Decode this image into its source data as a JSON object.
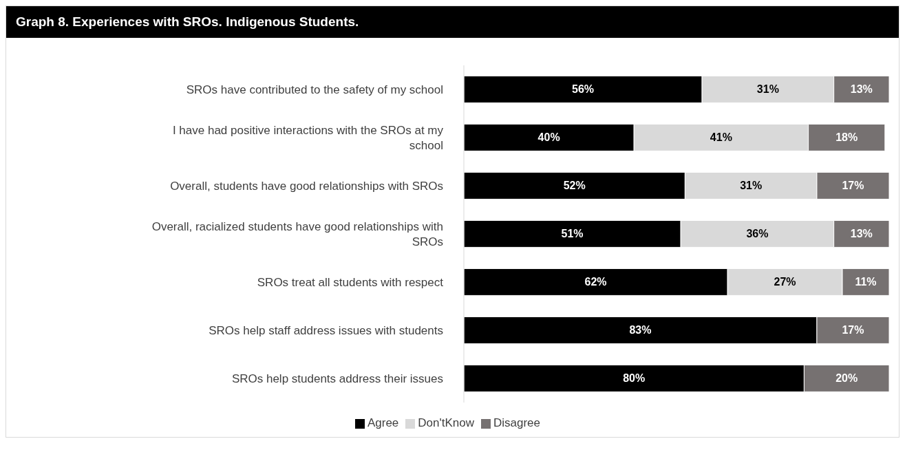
{
  "chart_data": {
    "type": "bar",
    "orientation": "horizontal",
    "stacked": true,
    "title": "Graph 8. Experiences with SROs. Indigenous Students.",
    "legend": "bottom",
    "grid": false,
    "categories": [
      "SROs have contributed to the safety of my school",
      "I have had positive interactions with the SROs at my school",
      "Overall, students have good relationships with SROs",
      "Overall, racialized students have good relationships with SROs",
      "SROs treat all students with respect",
      "SROs help staff address issues with students",
      "SROs help students address their issues"
    ],
    "series": [
      {
        "name": "Agree",
        "color": "#000000",
        "values": [
          56,
          40,
          52,
          51,
          62,
          83,
          80
        ],
        "value_labels": [
          "56%",
          "40%",
          "52%",
          "51%",
          "62%",
          "83%",
          "80%"
        ]
      },
      {
        "name": "Don'tKnow",
        "color": "#d9d9d9",
        "values": [
          31,
          41,
          31,
          36,
          27,
          null,
          null
        ],
        "value_labels": [
          "31%",
          "41%",
          "31%",
          "36%",
          "27%",
          null,
          null
        ]
      },
      {
        "name": "Disagree",
        "color": "#767171",
        "values": [
          13,
          18,
          17,
          13,
          11,
          17,
          20
        ],
        "value_labels": [
          "13%",
          "18%",
          "17%",
          "13%",
          "11%",
          "17%",
          "20%"
        ]
      }
    ]
  }
}
